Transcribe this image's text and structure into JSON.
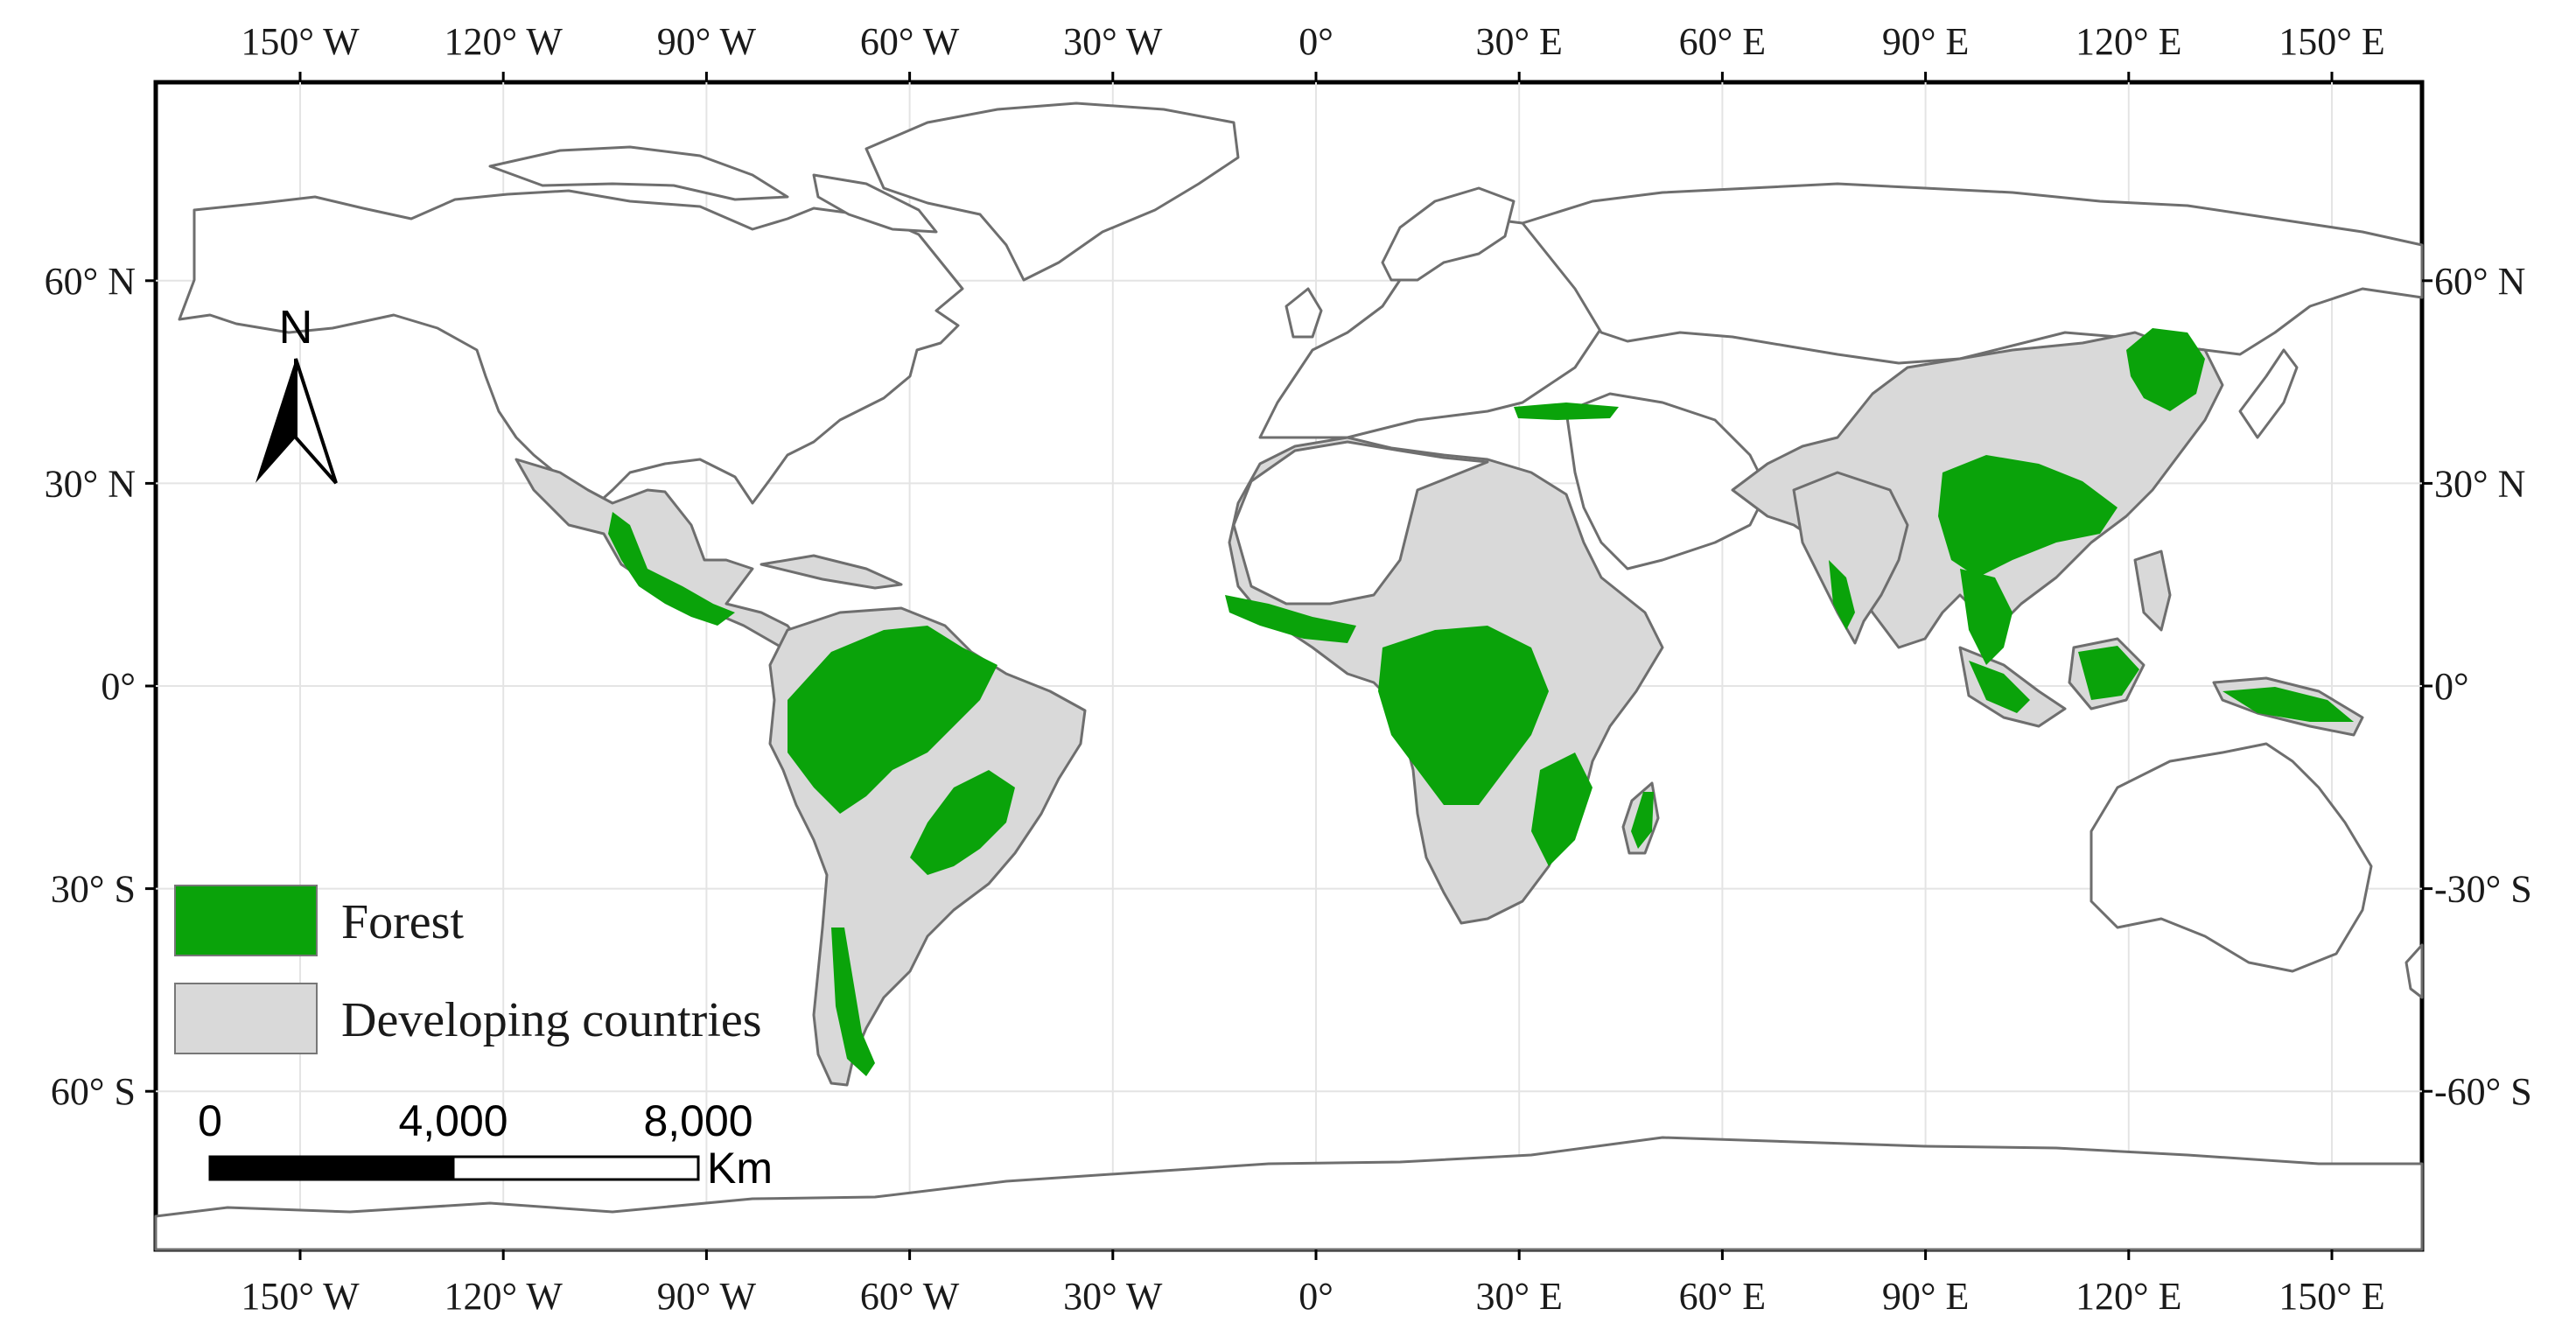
{
  "legend": {
    "items": [
      {
        "label": "Forest",
        "color": "#0aa30a"
      },
      {
        "label": "Developing countries",
        "color": "#d9d9d9"
      }
    ]
  },
  "north_arrow": {
    "label": "N"
  },
  "scale_bar": {
    "labels": [
      "0",
      "4,000",
      "8,000"
    ],
    "unit": "Km"
  },
  "axes": {
    "top": [
      {
        "lon": -150,
        "label": "150° W"
      },
      {
        "lon": -120,
        "label": "120° W"
      },
      {
        "lon": -90,
        "label": "90° W"
      },
      {
        "lon": -60,
        "label": "60° W"
      },
      {
        "lon": -30,
        "label": "30° W"
      },
      {
        "lon": 0,
        "label": "0°"
      },
      {
        "lon": 30,
        "label": "30° E"
      },
      {
        "lon": 60,
        "label": "60° E"
      },
      {
        "lon": 90,
        "label": "90° E"
      },
      {
        "lon": 120,
        "label": "120° E"
      },
      {
        "lon": 150,
        "label": "150° E"
      }
    ],
    "left": [
      {
        "lat": 60,
        "label": "60° N"
      },
      {
        "lat": 30,
        "label": "30° N"
      },
      {
        "lat": 0,
        "label": "0°"
      },
      {
        "lat": -30,
        "label": "30° S"
      },
      {
        "lat": -60,
        "label": "60° S"
      }
    ],
    "right": [
      {
        "lat": 60,
        "label": "60° N"
      },
      {
        "lat": 30,
        "label": "30° N"
      },
      {
        "lat": 0,
        "label": "0°"
      },
      {
        "lat": -30,
        "label": "-30° S"
      },
      {
        "lat": -60,
        "label": "-60° S"
      }
    ]
  },
  "colors": {
    "forest": "#0aa30a",
    "developing": "#d9d9d9",
    "coast": "#6e6e6e",
    "grid": "#e4e4e4",
    "frame": "#000000"
  }
}
